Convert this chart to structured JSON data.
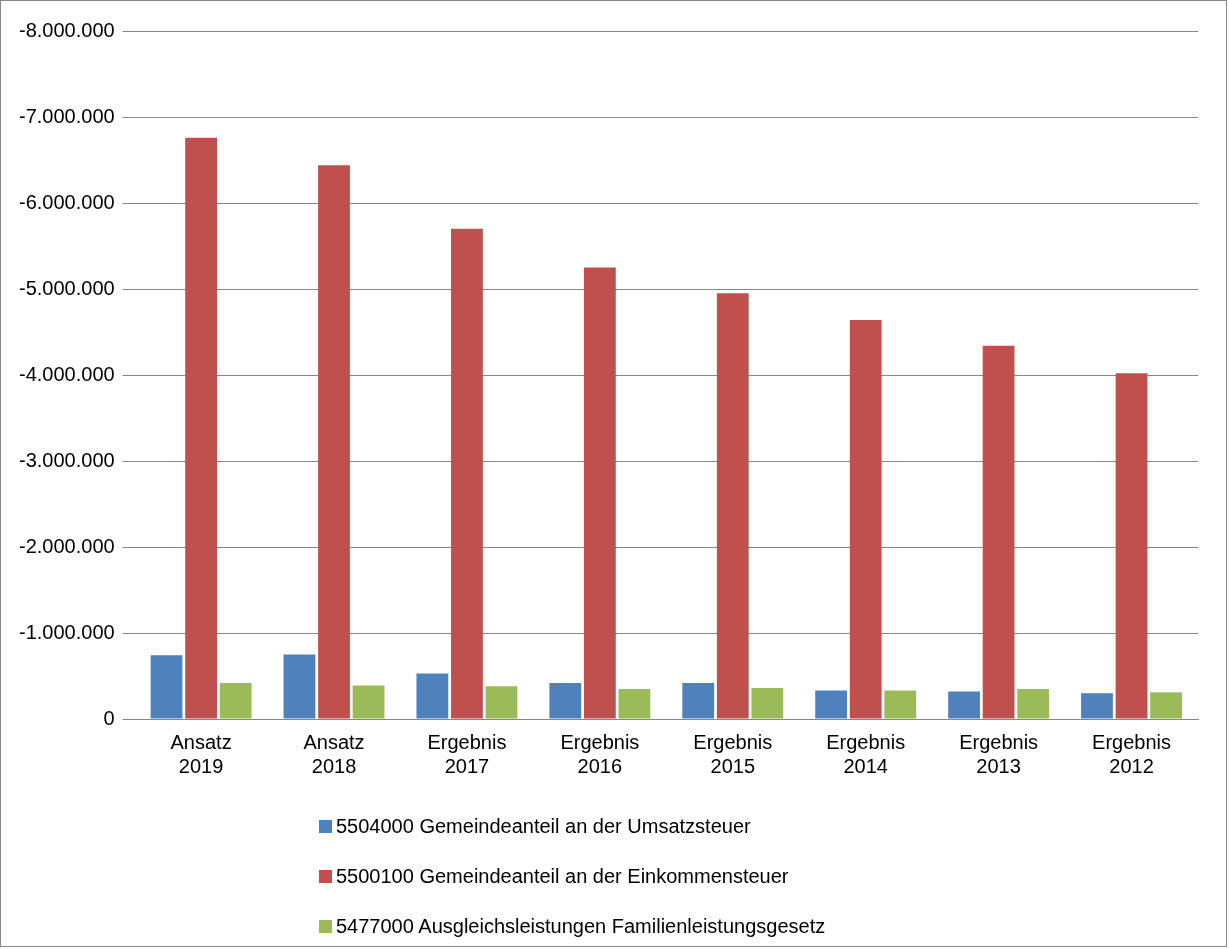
{
  "chart_data": {
    "type": "bar",
    "categories": [
      "Ansatz 2019",
      "Ansatz 2018",
      "Ergebnis 2017",
      "Ergebnis 2016",
      "Ergebnis 2015",
      "Ergebnis 2014",
      "Ergebnis 2013",
      "Ergebnis 2012"
    ],
    "series": [
      {
        "name": "5504000 Gemeindeanteil an der Umsatzsteuer",
        "color": "#4f81bd",
        "values": [
          -740000,
          -750000,
          -530000,
          -420000,
          -420000,
          -330000,
          -320000,
          -300000
        ]
      },
      {
        "name": "5500100 Gemeindeanteil an der Einkommensteuer",
        "color": "#c0504d",
        "values": [
          -6760000,
          -6440000,
          -5700000,
          -5250000,
          -4950000,
          -4640000,
          -4340000,
          -4020000
        ]
      },
      {
        "name": "5477000 Ausgleichsleistungen Familienleistungsgesetz",
        "color": "#9bbb59",
        "values": [
          -420000,
          -390000,
          -380000,
          -350000,
          -360000,
          -330000,
          -350000,
          -310000
        ]
      }
    ],
    "ylim": [
      0,
      -8000000
    ],
    "yticks": [
      0,
      {
        "value": -1000000,
        "label": "-1.000.000"
      },
      {
        "value": -2000000,
        "label": "-2.000.000"
      },
      {
        "value": -3000000,
        "label": "-3.000.000"
      },
      {
        "value": -4000000,
        "label": "-4.000.000"
      },
      {
        "value": -5000000,
        "label": "-5.000.000"
      },
      {
        "value": -6000000,
        "label": "-6.000.000"
      },
      {
        "value": -7000000,
        "label": "-7.000.000"
      },
      {
        "value": -8000000,
        "label": "-8.000.000"
      }
    ],
    "grid": "y",
    "legend": "bottom"
  }
}
